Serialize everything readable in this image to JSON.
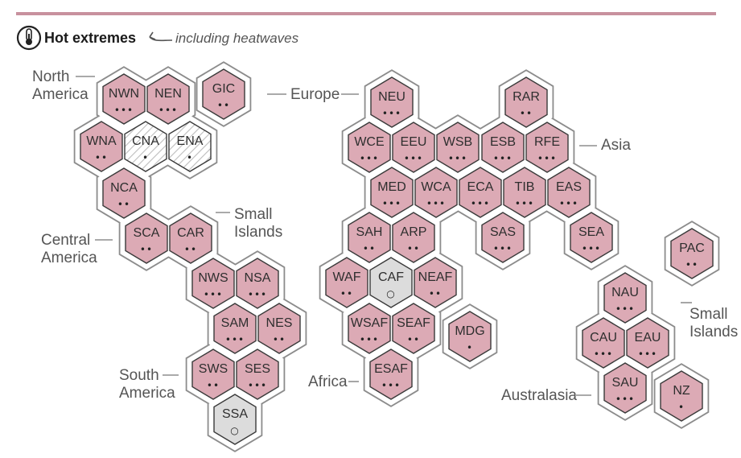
{
  "header": {
    "title": "Hot extremes",
    "subtitle": "including heatwaves",
    "icon": "thermometer-icon"
  },
  "colors": {
    "increase": "#dcaab5",
    "no_change": "#dcdcdc",
    "low_agreement": "#ffffff",
    "hatch": "#bdbdbd",
    "outline": "#3a3a3a",
    "top_rule": "#c8919e"
  },
  "group_labels": {
    "north_america": [
      "North",
      "America"
    ],
    "central_america": [
      "Central",
      "America"
    ],
    "small_islands_car": [
      "Small",
      "Islands"
    ],
    "south_america": [
      "South",
      "America"
    ],
    "europe": [
      "Europe"
    ],
    "asia": [
      "Asia"
    ],
    "africa": [
      "Africa"
    ],
    "australasia": [
      "Australasia"
    ],
    "small_islands_pac": [
      "Small",
      "Islands"
    ]
  },
  "regions": [
    {
      "code": "NWN",
      "dots": "•••",
      "status": "increase"
    },
    {
      "code": "NEN",
      "dots": "•••",
      "status": "increase"
    },
    {
      "code": "GIC",
      "dots": "••",
      "status": "increase"
    },
    {
      "code": "WNA",
      "dots": "••",
      "status": "increase"
    },
    {
      "code": "CNA",
      "dots": "•",
      "status": "low_agreement"
    },
    {
      "code": "ENA",
      "dots": "•",
      "status": "low_agreement"
    },
    {
      "code": "NCA",
      "dots": "••",
      "status": "increase"
    },
    {
      "code": "SCA",
      "dots": "••",
      "status": "increase"
    },
    {
      "code": "CAR",
      "dots": "••",
      "status": "increase"
    },
    {
      "code": "NWS",
      "dots": "•••",
      "status": "increase"
    },
    {
      "code": "NSA",
      "dots": "•••",
      "status": "increase"
    },
    {
      "code": "SAM",
      "dots": "•••",
      "status": "increase"
    },
    {
      "code": "NES",
      "dots": "••",
      "status": "increase"
    },
    {
      "code": "SWS",
      "dots": "••",
      "status": "increase"
    },
    {
      "code": "SES",
      "dots": "•••",
      "status": "increase"
    },
    {
      "code": "SSA",
      "dots": "○",
      "status": "no_change"
    },
    {
      "code": "NEU",
      "dots": "•••",
      "status": "increase"
    },
    {
      "code": "RAR",
      "dots": "••",
      "status": "increase"
    },
    {
      "code": "WCE",
      "dots": "•••",
      "status": "increase"
    },
    {
      "code": "EEU",
      "dots": "•••",
      "status": "increase"
    },
    {
      "code": "WSB",
      "dots": "•••",
      "status": "increase"
    },
    {
      "code": "ESB",
      "dots": "•••",
      "status": "increase"
    },
    {
      "code": "RFE",
      "dots": "•••",
      "status": "increase"
    },
    {
      "code": "MED",
      "dots": "•••",
      "status": "increase"
    },
    {
      "code": "WCA",
      "dots": "•••",
      "status": "increase"
    },
    {
      "code": "ECA",
      "dots": "•••",
      "status": "increase"
    },
    {
      "code": "TIB",
      "dots": "•••",
      "status": "increase"
    },
    {
      "code": "EAS",
      "dots": "•••",
      "status": "increase"
    },
    {
      "code": "SAH",
      "dots": "••",
      "status": "increase"
    },
    {
      "code": "ARP",
      "dots": "••",
      "status": "increase"
    },
    {
      "code": "SAS",
      "dots": "•••",
      "status": "increase"
    },
    {
      "code": "SEA",
      "dots": "•••",
      "status": "increase"
    },
    {
      "code": "WAF",
      "dots": "••",
      "status": "increase"
    },
    {
      "code": "CAF",
      "dots": "○",
      "status": "no_change"
    },
    {
      "code": "NEAF",
      "dots": "••",
      "status": "increase"
    },
    {
      "code": "WSAF",
      "dots": "•••",
      "status": "increase"
    },
    {
      "code": "SEAF",
      "dots": "••",
      "status": "increase"
    },
    {
      "code": "MDG",
      "dots": "•",
      "status": "increase"
    },
    {
      "code": "ESAF",
      "dots": "•••",
      "status": "increase"
    },
    {
      "code": "PAC",
      "dots": "••",
      "status": "increase"
    },
    {
      "code": "NAU",
      "dots": "•••",
      "status": "increase"
    },
    {
      "code": "CAU",
      "dots": "•••",
      "status": "increase"
    },
    {
      "code": "EAU",
      "dots": "•••",
      "status": "increase"
    },
    {
      "code": "SAU",
      "dots": "•••",
      "status": "increase"
    },
    {
      "code": "NZ",
      "dots": "•",
      "status": "increase"
    }
  ]
}
